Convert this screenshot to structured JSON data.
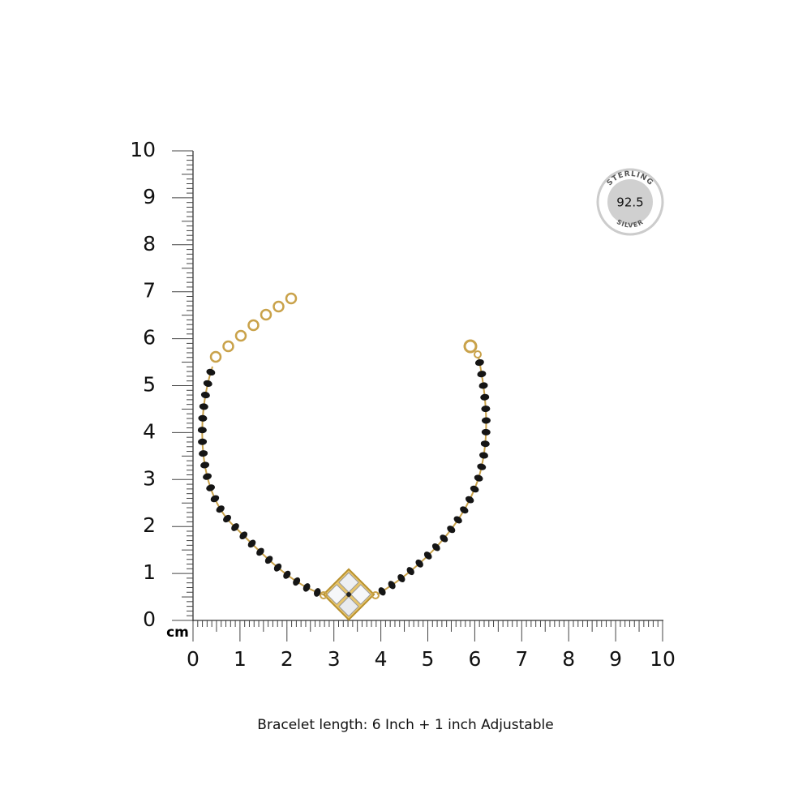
{
  "ruler": {
    "unit": "cm",
    "y_labels": [
      0,
      1,
      2,
      3,
      4,
      5,
      6,
      7,
      8,
      9,
      10
    ],
    "x_labels": [
      0,
      1,
      2,
      3,
      4,
      5,
      6,
      7,
      8,
      9,
      10
    ]
  },
  "badge": {
    "top": "STERLING",
    "center": "92.5",
    "bottom": "SILVER"
  },
  "caption": "Bracelet length:  6 Inch + 1 inch Adjustable"
}
